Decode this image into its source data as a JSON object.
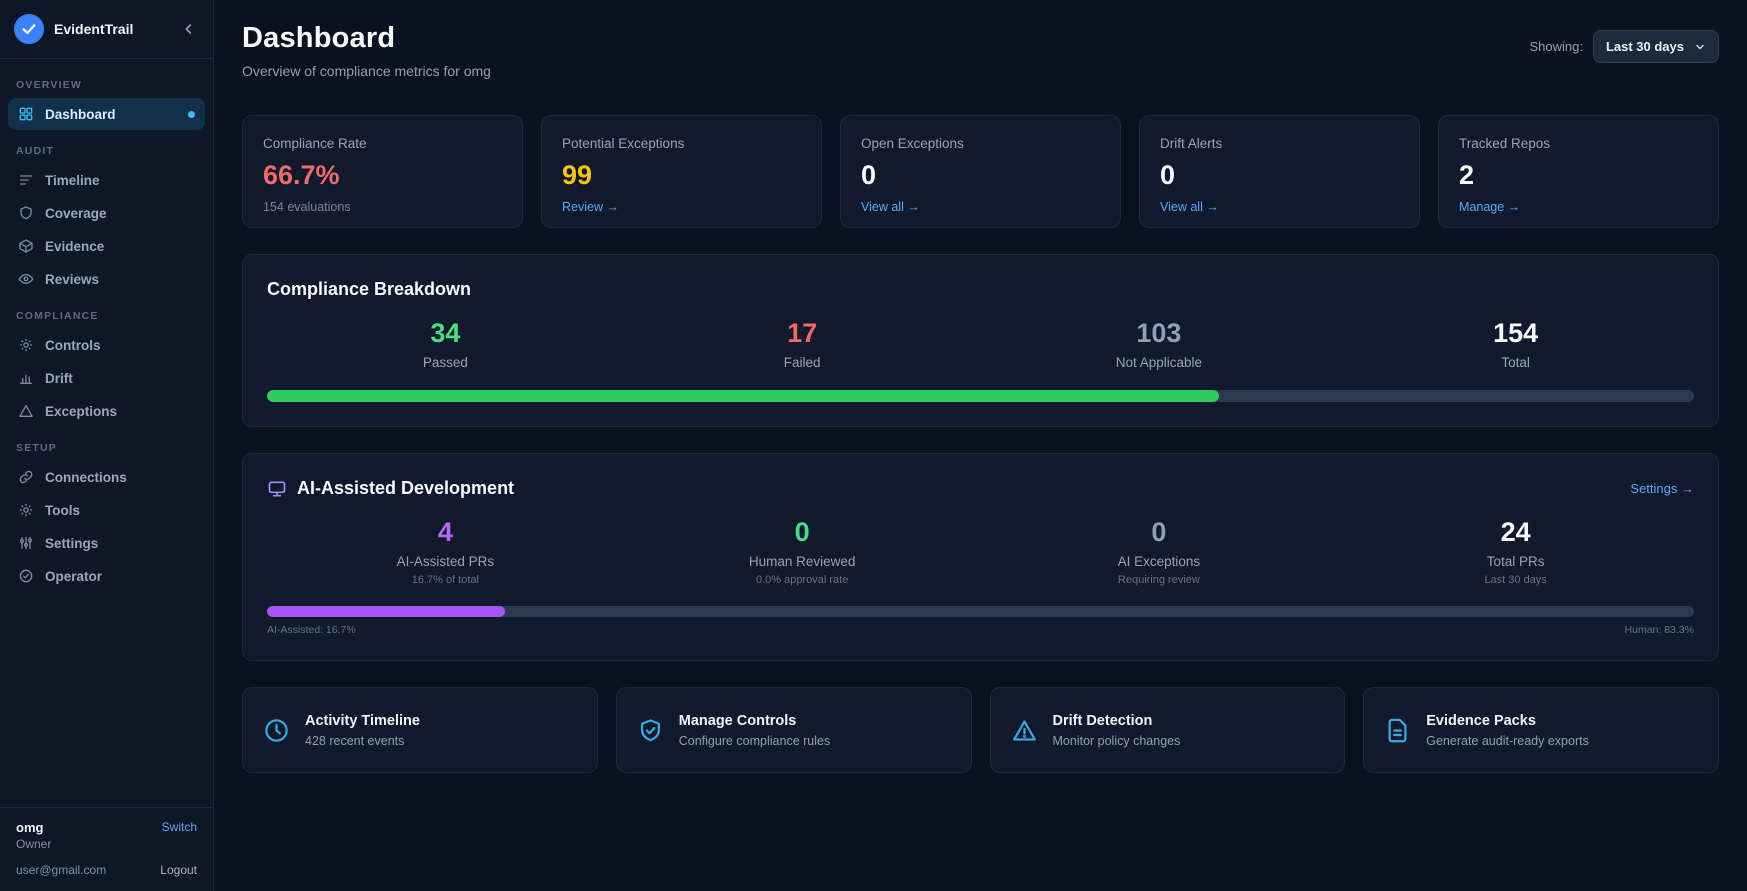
{
  "app": {
    "name": "EvidentTrail"
  },
  "sidebar": {
    "sections": [
      {
        "label": "OVERVIEW",
        "items": [
          {
            "label": "Dashboard",
            "active": true
          }
        ]
      },
      {
        "label": "AUDIT",
        "items": [
          {
            "label": "Timeline"
          },
          {
            "label": "Coverage"
          },
          {
            "label": "Evidence"
          },
          {
            "label": "Reviews"
          }
        ]
      },
      {
        "label": "COMPLIANCE",
        "items": [
          {
            "label": "Controls"
          },
          {
            "label": "Drift"
          },
          {
            "label": "Exceptions"
          }
        ]
      },
      {
        "label": "SETUP",
        "items": [
          {
            "label": "Connections"
          },
          {
            "label": "Tools"
          },
          {
            "label": "Settings"
          },
          {
            "label": "Operator"
          }
        ]
      }
    ],
    "footer": {
      "org": "omg",
      "role": "Owner",
      "switch_label": "Switch",
      "email": "user@gmail.com",
      "logout_label": "Logout"
    }
  },
  "header": {
    "title": "Dashboard",
    "subtitle": "Overview of compliance metrics for omg",
    "showing_label": "Showing:",
    "range_value": "Last 30 days"
  },
  "stat_cards": [
    {
      "label": "Compliance Rate",
      "value": "66.7%",
      "value_color": "#f06a6a",
      "sub": "154 evaluations"
    },
    {
      "label": "Potential Exceptions",
      "value": "99",
      "value_color": "#f5c518",
      "link": "Review →"
    },
    {
      "label": "Open Exceptions",
      "value": "0",
      "value_color": "#f8fafc",
      "link": "View all →"
    },
    {
      "label": "Drift Alerts",
      "value": "0",
      "value_color": "#f8fafc",
      "link": "View all →"
    },
    {
      "label": "Tracked Repos",
      "value": "2",
      "value_color": "#f8fafc",
      "link": "Manage →"
    }
  ],
  "compliance_breakdown": {
    "title": "Compliance Breakdown",
    "stats": [
      {
        "value": "34",
        "label": "Passed",
        "color": "#4ade80"
      },
      {
        "value": "17",
        "label": "Failed",
        "color": "#f06a6a"
      },
      {
        "value": "103",
        "label": "Not Applicable",
        "color": "#8fa0b5"
      },
      {
        "value": "154",
        "label": "Total",
        "color": "#f8fafc"
      }
    ],
    "progress_percent": 66.7,
    "bar_color": "#2ecc5f"
  },
  "ai_section": {
    "title": "AI-Assisted Development",
    "settings_link": "Settings →",
    "stats": [
      {
        "value": "4",
        "label": "AI-Assisted PRs",
        "sub": "16.7% of total",
        "color": "#b668f7"
      },
      {
        "value": "0",
        "label": "Human Reviewed",
        "sub": "0.0% approval rate",
        "color": "#4ade80"
      },
      {
        "value": "0",
        "label": "AI Exceptions",
        "sub": "Requiring review",
        "color": "#8fa0b5"
      },
      {
        "value": "24",
        "label": "Total PRs",
        "sub": "Last 30 days",
        "color": "#f8fafc"
      }
    ],
    "progress_percent": 16.7,
    "bar_color": "#a855f7",
    "left_caption": "AI-Assisted: 16.7%",
    "right_caption": "Human: 83.3%"
  },
  "action_cards": [
    {
      "title": "Activity Timeline",
      "sub": "428 recent events"
    },
    {
      "title": "Manage Controls",
      "sub": "Configure compliance rules"
    },
    {
      "title": "Drift Detection",
      "sub": "Monitor policy changes"
    },
    {
      "title": "Evidence Packs",
      "sub": "Generate audit-ready exports"
    }
  ]
}
